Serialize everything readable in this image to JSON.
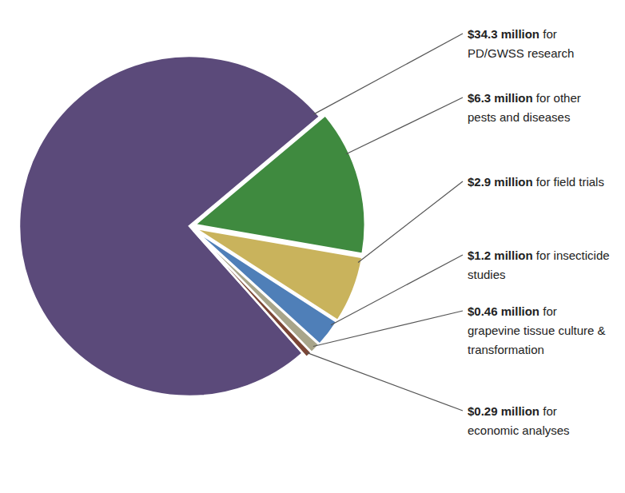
{
  "chart_data": {
    "type": "pie",
    "categories": [
      "for PD/GWSS research",
      "for other pests and diseases",
      "for field trials",
      "for insecticide studies",
      "for grapevine tissue culture & transformation",
      "for economic analyses"
    ],
    "values": [
      34.3,
      6.3,
      2.9,
      1.2,
      0.46,
      0.29
    ],
    "value_labels": [
      "$34.3 million",
      "$6.3 million",
      "$2.9 million",
      "$1.2 million",
      "$0.46 million",
      "$0.29 million"
    ],
    "colors": [
      "#5b4a7a",
      "#3f8a3f",
      "#c9b35c",
      "#4f7fb8",
      "#a8a58a",
      "#7b4636"
    ],
    "data_labels": true
  }
}
